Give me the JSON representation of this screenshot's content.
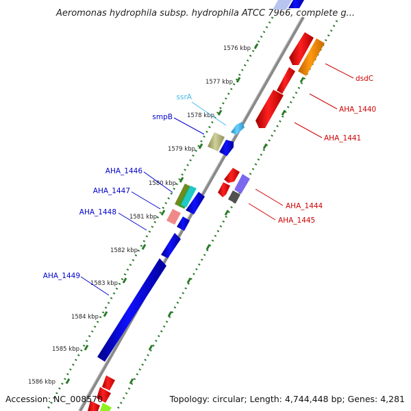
{
  "title": "Aeromonas hydrophila subsp. hydrophila ATCC 7966, complete g...",
  "footer": {
    "accession": "Accession: NC_008570",
    "topology": "Topology: circular; Length: 4,744,448 bp; Genes: 4,281"
  },
  "scale": {
    "unit": "kbp",
    "ticks": [
      "1576 kbp",
      "1577 kbp",
      "1578 kbp",
      "1579 kbp",
      "1580 kbp",
      "1581 kbp",
      "1582 kbp",
      "1583 kbp",
      "1584 kbp",
      "1585 kbp",
      "1586 kbp"
    ]
  },
  "colors": {
    "forward_labels": "#0000cc",
    "reverse_labels": "#cc0000",
    "rna_label": "#44b8ea",
    "backbone": "#8a8a8a",
    "tick_dots": "#2a7a2a"
  },
  "genes": [
    {
      "label": "ssrA",
      "color": "#44b8ea"
    },
    {
      "label": "smpB",
      "color": "#0000cc"
    },
    {
      "label": "AHA_1446",
      "color": "#0000cc"
    },
    {
      "label": "AHA_1447",
      "color": "#0000cc"
    },
    {
      "label": "AHA_1448",
      "color": "#0000cc"
    },
    {
      "label": "AHA_1449",
      "color": "#0000cc"
    },
    {
      "label": "dsdC",
      "color": "#cc0000"
    },
    {
      "label": "AHA_1440",
      "color": "#cc0000"
    },
    {
      "label": "AHA_1441",
      "color": "#cc0000"
    },
    {
      "label": "AHA_1444",
      "color": "#cc0000"
    },
    {
      "label": "AHA_1445",
      "color": "#cc0000"
    }
  ]
}
